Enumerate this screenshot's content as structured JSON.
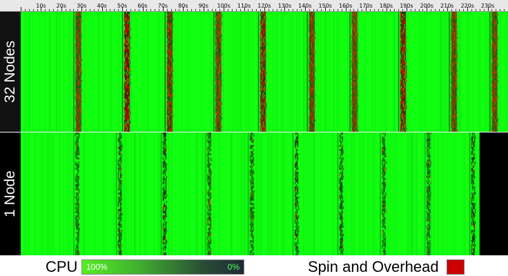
{
  "chart_data": {
    "type": "heatmap",
    "x_axis": {
      "unit": "s",
      "ticks": [
        "10s",
        "20s",
        "30s",
        "40s",
        "50s",
        "60s",
        "70s",
        "80s",
        "90s",
        "100s",
        "110s",
        "120s",
        "130s",
        "140s",
        "150s",
        "160s",
        "170s",
        "180s",
        "190s",
        "200s",
        "210s",
        "220s",
        "230s"
      ],
      "range": [
        0,
        240
      ]
    },
    "panels": [
      {
        "label": "32 Nodes",
        "overhead_bands_s": [
          27,
          51,
          72,
          96,
          118,
          142,
          163,
          187,
          212,
          232
        ],
        "end_s": 240
      },
      {
        "label": "1 Node",
        "overhead_bands_s": [
          27,
          48,
          70,
          92,
          113,
          135,
          157,
          178,
          200,
          222
        ],
        "end_s": 226
      }
    ],
    "legend": {
      "cpu_label": "CPU",
      "cpu_max": "100%",
      "cpu_min": "0%",
      "spin_label": "Spin and Overhead",
      "colors": {
        "cpu_full": "#11ff11",
        "cpu_empty": "#1e2a38",
        "spin": "#cc0000",
        "idle": "#000000"
      }
    }
  }
}
